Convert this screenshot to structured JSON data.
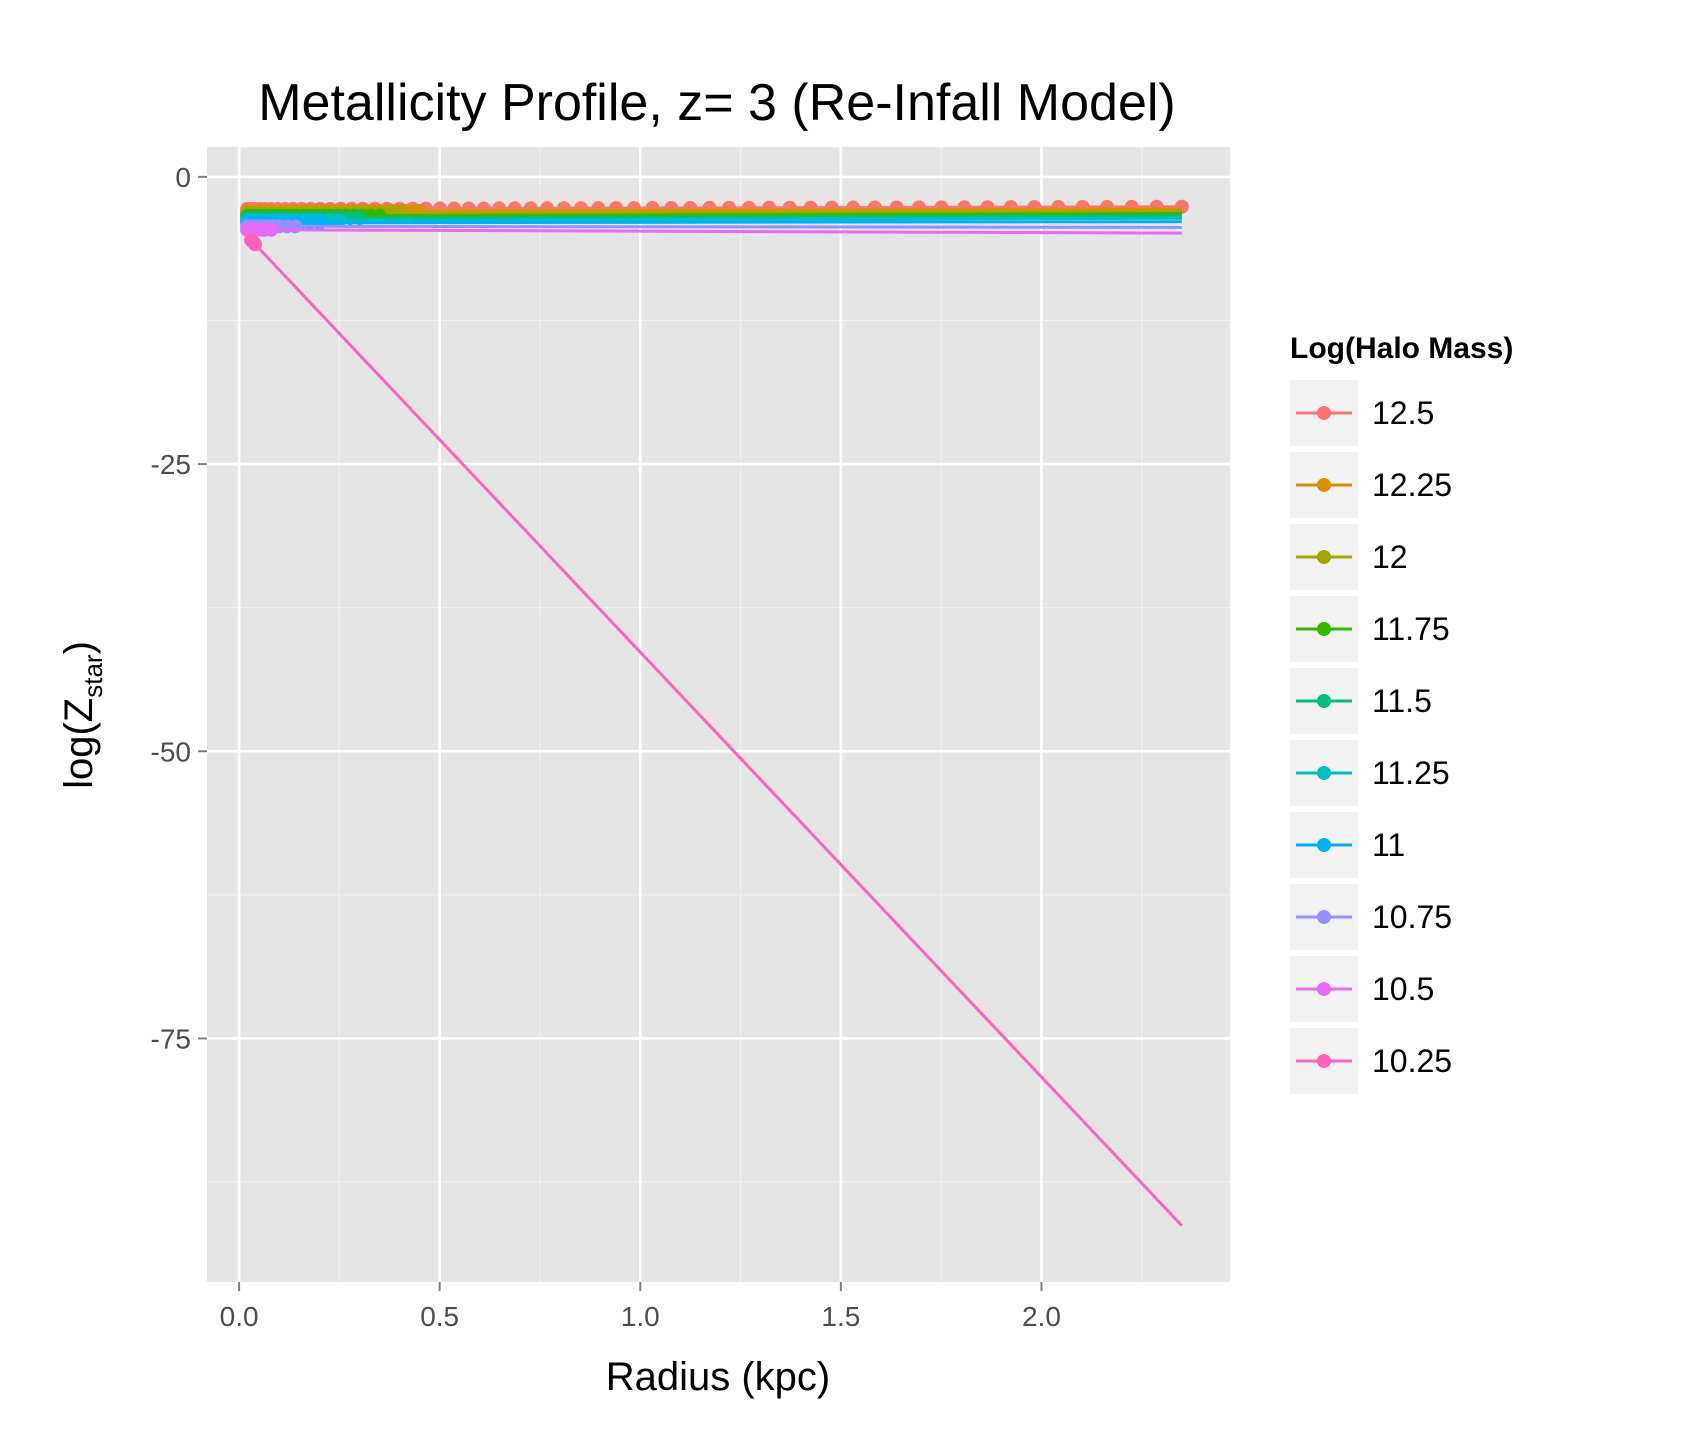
{
  "chart_data": {
    "type": "line",
    "title": "Metallicity Profile, z= 3 (Re-Infall Model)",
    "xlabel": "Radius (kpc)",
    "ylabel_base": "log(Z",
    "ylabel_sub": "star",
    "ylabel_close": ")",
    "xlim": [
      -0.08,
      2.47
    ],
    "ylim": [
      -96.2,
      2.6
    ],
    "x_ticks": [
      0.0,
      0.5,
      1.0,
      1.5,
      2.0
    ],
    "x_tick_labels": [
      "0.0",
      "0.5",
      "1.0",
      "1.5",
      "2.0"
    ],
    "y_ticks": [
      0,
      -25,
      -50,
      -75
    ],
    "y_tick_labels": [
      "0",
      "-25",
      "-50",
      "-75"
    ],
    "y_minor_ticks": [
      -12.5,
      -37.5,
      -62.5,
      -87.5
    ],
    "x_minor_ticks": [
      0.25,
      0.75,
      1.25,
      1.75,
      2.25
    ],
    "grid": true,
    "legend": {
      "title": "Log(Halo Mass)",
      "placement": "right"
    },
    "series": [
      {
        "name": "12.5",
        "color": "#F8766D",
        "x_start": 0.02,
        "x_end": 2.35,
        "y_start": -2.8,
        "y_end": -2.6,
        "points_n": 60,
        "points_max_x": 2.35
      },
      {
        "name": "12.25",
        "color": "#D89000",
        "x_start": 0.02,
        "x_end": 2.35,
        "y_start": -3.0,
        "y_end": -2.8,
        "points_n": 40,
        "points_max_x": 0.45
      },
      {
        "name": "12",
        "color": "#A3A500",
        "x_start": 0.02,
        "x_end": 2.35,
        "y_start": -3.2,
        "y_end": -3.0,
        "points_n": 30,
        "points_max_x": 0.4
      },
      {
        "name": "11.75",
        "color": "#39B600",
        "x_start": 0.02,
        "x_end": 2.35,
        "y_start": -3.4,
        "y_end": -3.2,
        "points_n": 25,
        "points_max_x": 0.35
      },
      {
        "name": "11.5",
        "color": "#00BF7D",
        "x_start": 0.02,
        "x_end": 2.35,
        "y_start": -3.6,
        "y_end": -3.4,
        "points_n": 20,
        "points_max_x": 0.3
      },
      {
        "name": "11.25",
        "color": "#00BFC4",
        "x_start": 0.02,
        "x_end": 2.35,
        "y_start": -3.8,
        "y_end": -3.6,
        "points_n": 16,
        "points_max_x": 0.25
      },
      {
        "name": "11",
        "color": "#00B0F6",
        "x_start": 0.02,
        "x_end": 2.35,
        "y_start": -4.0,
        "y_end": -3.9,
        "points_n": 12,
        "points_max_x": 0.2
      },
      {
        "name": "10.75",
        "color": "#9590FF",
        "x_start": 0.02,
        "x_end": 2.35,
        "y_start": -4.3,
        "y_end": -4.4,
        "points_n": 10,
        "points_max_x": 0.14
      },
      {
        "name": "10.5",
        "color": "#E76BF3",
        "x_start": 0.02,
        "x_end": 2.35,
        "y_start": -4.6,
        "y_end": -4.9,
        "points_n": 6,
        "points_max_x": 0.08
      },
      {
        "name": "10.25",
        "color": "#FF62BC",
        "x_start": 0.03,
        "x_end": 2.35,
        "y_start": -5.5,
        "y_end": -91.3,
        "points_n": 3,
        "points_max_x": 0.04
      }
    ]
  }
}
